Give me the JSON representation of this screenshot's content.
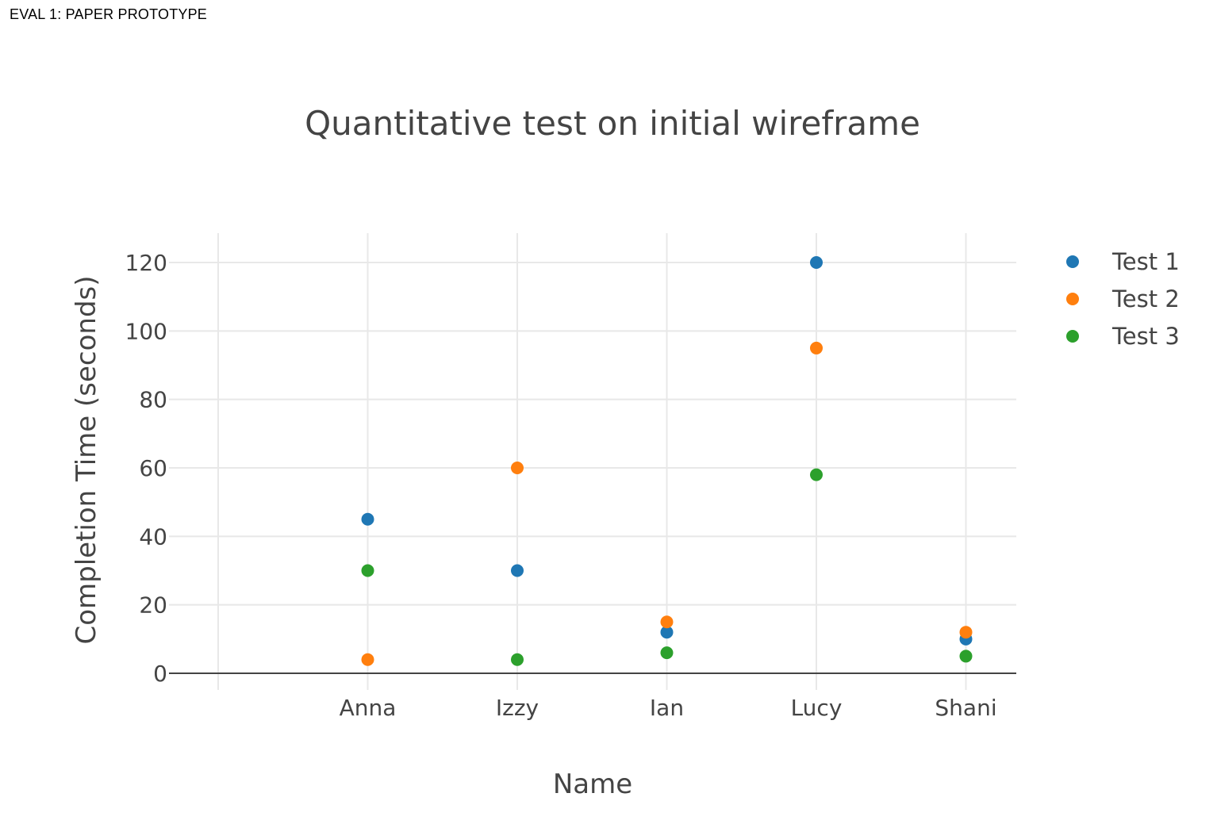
{
  "page": {
    "header": "EVAL 1: PAPER PROTOTYPE"
  },
  "chart_data": {
    "type": "scatter",
    "title": "Quantitative test on initial wireframe",
    "xlabel": "Name",
    "ylabel": "Completion Time (seconds)",
    "categories": [
      "Anna",
      "Izzy",
      "Ian",
      "Lucy",
      "Shani"
    ],
    "y_ticks": [
      0,
      20,
      40,
      60,
      80,
      100,
      120
    ],
    "ylim": [
      -5,
      128
    ],
    "grid": true,
    "legend_position": "top-right",
    "series": [
      {
        "name": "Test 1",
        "color": "#1f77b4",
        "values": [
          45,
          30,
          12,
          120,
          10
        ]
      },
      {
        "name": "Test 2",
        "color": "#ff7f0e",
        "values": [
          4,
          60,
          15,
          95,
          12
        ]
      },
      {
        "name": "Test 3",
        "color": "#2ca02c",
        "values": [
          30,
          4,
          6,
          58,
          5
        ]
      }
    ]
  }
}
